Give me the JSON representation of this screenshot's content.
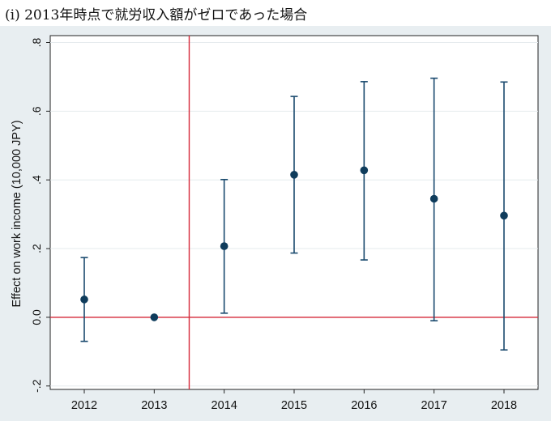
{
  "caption": "(i) 2013年時点で就労収入額がゼロであった場合",
  "chart_data": {
    "type": "scatter",
    "ylabel": "Effect on work income (10,000 JPY)",
    "xlabel": "",
    "categories": [
      "2012",
      "2013",
      "2014",
      "2015",
      "2016",
      "2017",
      "2018"
    ],
    "y_ticks": [
      -0.2,
      0.0,
      0.2,
      0.4,
      0.6,
      0.8
    ],
    "y_tick_labels": [
      "-.2",
      "0.0",
      ".2",
      ".4",
      ".6",
      ".8"
    ],
    "ylim": [
      -0.21,
      0.82
    ],
    "grid": true,
    "series": [
      {
        "estimate": [
          0.052,
          0.0,
          0.207,
          0.415,
          0.428,
          0.345,
          0.296
        ],
        "ci_lower": [
          -0.07,
          null,
          0.012,
          0.187,
          0.167,
          -0.01,
          -0.095
        ],
        "ci_upper": [
          0.174,
          null,
          0.401,
          0.643,
          0.686,
          0.696,
          0.685
        ]
      }
    ],
    "reference_lines": {
      "horizontal_y": 0,
      "vertical_between": [
        "2013",
        "2014"
      ]
    },
    "colors": {
      "marker": "#0f3c5c",
      "errorbar": "#1a4a6e",
      "reference": "#d62839",
      "plot_bg": "#ffffff",
      "outer_bg": "#e8eef1",
      "grid": "#e6ebee"
    }
  }
}
